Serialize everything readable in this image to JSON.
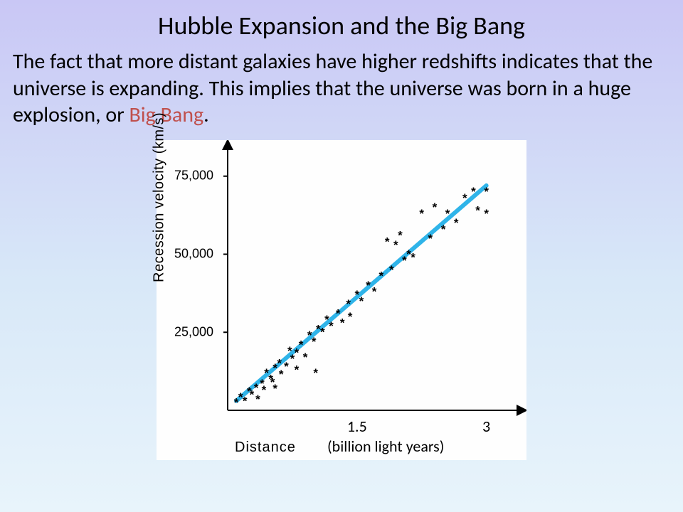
{
  "title": "Hubble Expansion and the Big Bang",
  "body_pre": "The fact that more distant galaxies have higher redshifts indicates that the universe is expanding. This implies that the universe was born in a huge explosion, or ",
  "body_emph": "Big Bang",
  "body_post": ".",
  "chart": {
    "type": "scatter",
    "background_color": "#fefefe",
    "axis_color": "#000000",
    "axis_width": 2,
    "line_color": "#2fb4e9",
    "line_width": 6,
    "marker_color": "#000000",
    "marker_glyph": "*",
    "marker_size": 17,
    "ylabel": "Recession velocity (km/s)",
    "xlabel_main": "Distance",
    "xlabel_units": "(billion light years)",
    "xlim": [
      0,
      3.3
    ],
    "ylim": [
      0,
      82000
    ],
    "xticks": [
      {
        "value": 1.5,
        "label": "1.5"
      },
      {
        "value": 3.0,
        "label": "3"
      }
    ],
    "yticks": [
      {
        "value": 25000,
        "label": "25,000"
      },
      {
        "value": 50000,
        "label": "50,000"
      },
      {
        "value": 75000,
        "label": "75,000"
      }
    ],
    "fit_line": {
      "x1": 0.1,
      "y1": 3000,
      "x2": 3.0,
      "y2": 72000
    },
    "points": [
      {
        "x": 0.1,
        "y": 2500
      },
      {
        "x": 0.15,
        "y": 4200
      },
      {
        "x": 0.2,
        "y": 3000
      },
      {
        "x": 0.25,
        "y": 6000
      },
      {
        "x": 0.28,
        "y": 5000
      },
      {
        "x": 0.33,
        "y": 7200
      },
      {
        "x": 0.35,
        "y": 3500
      },
      {
        "x": 0.4,
        "y": 8500
      },
      {
        "x": 0.42,
        "y": 6500
      },
      {
        "x": 0.45,
        "y": 12000
      },
      {
        "x": 0.5,
        "y": 10000
      },
      {
        "x": 0.52,
        "y": 9000
      },
      {
        "x": 0.55,
        "y": 13500
      },
      {
        "x": 0.55,
        "y": 7000
      },
      {
        "x": 0.6,
        "y": 15000
      },
      {
        "x": 0.62,
        "y": 11500
      },
      {
        "x": 0.68,
        "y": 14000
      },
      {
        "x": 0.72,
        "y": 19000
      },
      {
        "x": 0.75,
        "y": 16500
      },
      {
        "x": 0.8,
        "y": 18500
      },
      {
        "x": 0.8,
        "y": 13000
      },
      {
        "x": 0.85,
        "y": 21000
      },
      {
        "x": 0.9,
        "y": 17000
      },
      {
        "x": 0.95,
        "y": 24000
      },
      {
        "x": 1.0,
        "y": 22000
      },
      {
        "x": 1.02,
        "y": 12000
      },
      {
        "x": 1.05,
        "y": 26000
      },
      {
        "x": 1.1,
        "y": 25000
      },
      {
        "x": 1.15,
        "y": 29000
      },
      {
        "x": 1.2,
        "y": 27000
      },
      {
        "x": 1.28,
        "y": 31000
      },
      {
        "x": 1.33,
        "y": 28000
      },
      {
        "x": 1.4,
        "y": 34000
      },
      {
        "x": 1.42,
        "y": 30000
      },
      {
        "x": 1.5,
        "y": 37000
      },
      {
        "x": 1.55,
        "y": 35000
      },
      {
        "x": 1.63,
        "y": 40000
      },
      {
        "x": 1.7,
        "y": 38000
      },
      {
        "x": 1.78,
        "y": 43000
      },
      {
        "x": 1.85,
        "y": 54000
      },
      {
        "x": 1.9,
        "y": 45000
      },
      {
        "x": 1.95,
        "y": 53000
      },
      {
        "x": 2.0,
        "y": 56000
      },
      {
        "x": 2.05,
        "y": 48000
      },
      {
        "x": 2.1,
        "y": 50000
      },
      {
        "x": 2.15,
        "y": 49000
      },
      {
        "x": 2.25,
        "y": 63000
      },
      {
        "x": 2.35,
        "y": 55000
      },
      {
        "x": 2.4,
        "y": 65000
      },
      {
        "x": 2.5,
        "y": 58000
      },
      {
        "x": 2.55,
        "y": 63000
      },
      {
        "x": 2.65,
        "y": 60000
      },
      {
        "x": 2.75,
        "y": 68000
      },
      {
        "x": 2.85,
        "y": 70000
      },
      {
        "x": 2.9,
        "y": 64000
      },
      {
        "x": 3.0,
        "y": 63000
      },
      {
        "x": 3.0,
        "y": 70000
      }
    ]
  }
}
